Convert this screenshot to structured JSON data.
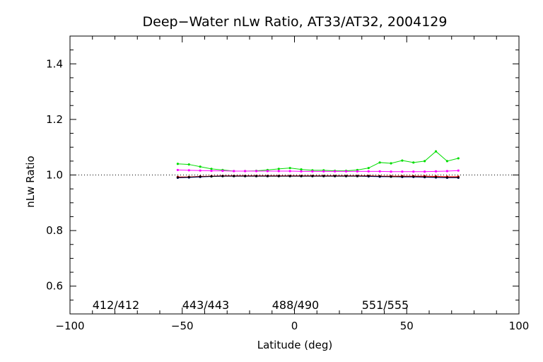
{
  "chart_data": {
    "type": "line",
    "title": "Deep−Water nLw Ratio, AT33/AT32, 2004129",
    "xlabel": "Latitude (deg)",
    "ylabel": "nLw Ratio",
    "xlim": [
      -100,
      100
    ],
    "ylim": [
      0.5,
      1.5
    ],
    "x_ticks": [
      -100,
      -50,
      0,
      50,
      100
    ],
    "x_tick_labels": [
      "−100",
      "−50",
      "0",
      "50",
      "100"
    ],
    "y_ticks": [
      0.6,
      0.8,
      1.0,
      1.2,
      1.4
    ],
    "y_tick_labels": [
      "0.6",
      "0.8",
      "1.0",
      "1.2",
      "1.4"
    ],
    "reference_line": 1.0,
    "grid": false,
    "x": [
      -52,
      -47,
      -42,
      -37,
      -32,
      -27,
      -22,
      -17,
      -12,
      -7,
      -2,
      3,
      8,
      13,
      18,
      23,
      28,
      33,
      38,
      43,
      48,
      53,
      58,
      63,
      68,
      73
    ],
    "series": [
      {
        "color": "#00dd00",
        "values": [
          1.04,
          1.038,
          1.03,
          1.022,
          1.018,
          1.014,
          1.014,
          1.015,
          1.018,
          1.022,
          1.025,
          1.02,
          1.017,
          1.017,
          1.015,
          1.015,
          1.018,
          1.025,
          1.045,
          1.042,
          1.052,
          1.045,
          1.05,
          1.085,
          1.05,
          1.06
        ]
      },
      {
        "color": "#ff00ff",
        "values": [
          1.018,
          1.017,
          1.016,
          1.015,
          1.015,
          1.014,
          1.014,
          1.014,
          1.014,
          1.014,
          1.014,
          1.013,
          1.013,
          1.013,
          1.013,
          1.013,
          1.013,
          1.013,
          1.013,
          1.012,
          1.012,
          1.012,
          1.012,
          1.013,
          1.014,
          1.016
        ]
      },
      {
        "color": "#ff0000",
        "values": [
          0.993,
          0.993,
          0.995,
          0.996,
          0.997,
          0.997,
          0.997,
          0.997,
          0.997,
          0.997,
          0.997,
          0.997,
          0.997,
          0.997,
          0.997,
          0.997,
          0.997,
          0.997,
          0.996,
          0.996,
          0.996,
          0.996,
          0.996,
          0.995,
          0.994,
          0.994
        ]
      },
      {
        "color": "#0000cc",
        "values": [
          0.99,
          0.991,
          0.993,
          0.995,
          0.996,
          0.996,
          0.996,
          0.996,
          0.996,
          0.996,
          0.996,
          0.996,
          0.996,
          0.996,
          0.996,
          0.996,
          0.996,
          0.995,
          0.994,
          0.994,
          0.993,
          0.993,
          0.992,
          0.991,
          0.99,
          0.99
        ]
      },
      {
        "color": "#000000",
        "values": [
          0.991,
          0.992,
          0.994,
          0.995,
          0.996,
          0.996,
          0.996,
          0.996,
          0.996,
          0.996,
          0.996,
          0.996,
          0.996,
          0.996,
          0.996,
          0.996,
          0.996,
          0.996,
          0.995,
          0.994,
          0.994,
          0.994,
          0.993,
          0.992,
          0.991,
          0.991
        ]
      }
    ],
    "legend": [
      {
        "label": "412/412",
        "color": "#00dd00",
        "position_x": -90
      },
      {
        "label": "443/443",
        "color": "#ff0000",
        "position_x": -50
      },
      {
        "label": "488/490",
        "color": "#0000cc",
        "position_x": -10
      },
      {
        "label": "551/555",
        "color": "#ff00ff",
        "position_x": 30
      }
    ],
    "legend_y": 0.53
  }
}
